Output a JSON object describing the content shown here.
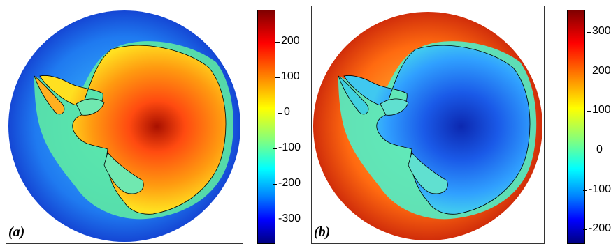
{
  "panels": [
    {
      "label": "(a)",
      "colorbar": {
        "ticks": [
          "200",
          "100",
          "0",
          "-100",
          "-200",
          "-300"
        ],
        "range": [
          -360,
          300
        ],
        "colormap": "jet"
      },
      "map": {
        "ocean_color": "#1a3fd8",
        "continent_color": "#ff6a10",
        "coast_band_color": "#7fff70",
        "center_color": "#b81800"
      }
    },
    {
      "label": "(b)",
      "colorbar": {
        "ticks": [
          "300",
          "200",
          "100",
          "0",
          "-100",
          "-200"
        ],
        "range": [
          -250,
          370
        ],
        "colormap": "jet"
      },
      "map": {
        "ocean_color": "#e8260c",
        "continent_color": "#1f6ef0",
        "coast_band_color": "#3fe0c0",
        "center_color": "#0a2ab8"
      }
    }
  ]
}
